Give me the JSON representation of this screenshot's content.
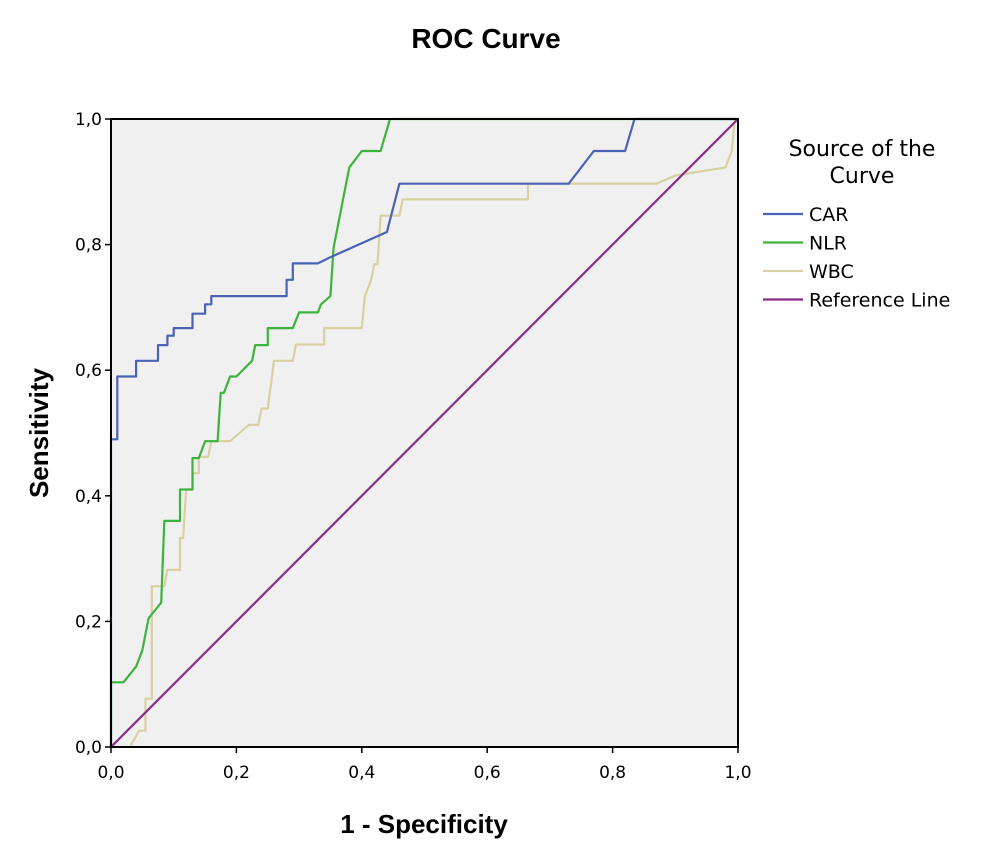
{
  "chart_data": {
    "type": "line",
    "title": "ROC Curve",
    "xlabel": "1 - Specificity",
    "ylabel": "Sensitivity",
    "xlim": [
      0,
      1
    ],
    "ylim": [
      0,
      1
    ],
    "x_ticks": [
      "0,0",
      "0,2",
      "0,4",
      "0,6",
      "0,8",
      "1,0"
    ],
    "y_ticks": [
      "0,0",
      "0,2",
      "0,4",
      "0,6",
      "0,8",
      "1,0"
    ],
    "grid": false,
    "background_color": "#f0f0f0",
    "legend": {
      "title_lines": [
        "Source of the",
        "Curve"
      ],
      "placement": "right"
    },
    "series": [
      {
        "name": "CAR",
        "color": "#4a62b4",
        "points": [
          [
            0,
            0
          ],
          [
            0,
            0.49
          ],
          [
            0.01,
            0.49
          ],
          [
            0.01,
            0.59
          ],
          [
            0.04,
            0.59
          ],
          [
            0.04,
            0.615
          ],
          [
            0.075,
            0.615
          ],
          [
            0.075,
            0.64
          ],
          [
            0.09,
            0.64
          ],
          [
            0.09,
            0.655
          ],
          [
            0.1,
            0.655
          ],
          [
            0.1,
            0.667
          ],
          [
            0.13,
            0.667
          ],
          [
            0.13,
            0.69
          ],
          [
            0.15,
            0.69
          ],
          [
            0.15,
            0.705
          ],
          [
            0.16,
            0.705
          ],
          [
            0.16,
            0.718
          ],
          [
            0.28,
            0.718
          ],
          [
            0.28,
            0.744
          ],
          [
            0.29,
            0.744
          ],
          [
            0.29,
            0.77
          ],
          [
            0.33,
            0.77
          ],
          [
            0.35,
            0.78
          ],
          [
            0.44,
            0.82
          ],
          [
            0.46,
            0.897
          ],
          [
            0.73,
            0.897
          ],
          [
            0.77,
            0.949
          ],
          [
            0.82,
            0.949
          ],
          [
            0.835,
            1.0
          ],
          [
            1.0,
            1.0
          ]
        ]
      },
      {
        "name": "NLR",
        "color": "#3cb43c",
        "points": [
          [
            0,
            0
          ],
          [
            0,
            0.103
          ],
          [
            0.02,
            0.103
          ],
          [
            0.04,
            0.128
          ],
          [
            0.05,
            0.154
          ],
          [
            0.055,
            0.18
          ],
          [
            0.06,
            0.205
          ],
          [
            0.08,
            0.23
          ],
          [
            0.085,
            0.36
          ],
          [
            0.11,
            0.36
          ],
          [
            0.11,
            0.41
          ],
          [
            0.13,
            0.41
          ],
          [
            0.13,
            0.46
          ],
          [
            0.14,
            0.46
          ],
          [
            0.15,
            0.487
          ],
          [
            0.17,
            0.487
          ],
          [
            0.175,
            0.564
          ],
          [
            0.18,
            0.564
          ],
          [
            0.19,
            0.59
          ],
          [
            0.2,
            0.59
          ],
          [
            0.225,
            0.615
          ],
          [
            0.23,
            0.64
          ],
          [
            0.25,
            0.64
          ],
          [
            0.25,
            0.667
          ],
          [
            0.29,
            0.667
          ],
          [
            0.3,
            0.692
          ],
          [
            0.33,
            0.692
          ],
          [
            0.335,
            0.705
          ],
          [
            0.35,
            0.718
          ],
          [
            0.355,
            0.795
          ],
          [
            0.375,
            0.897
          ],
          [
            0.38,
            0.923
          ],
          [
            0.4,
            0.949
          ],
          [
            0.43,
            0.949
          ],
          [
            0.445,
            1.0
          ],
          [
            1.0,
            1.0
          ]
        ]
      },
      {
        "name": "WBC",
        "color": "#d8d0a0",
        "points": [
          [
            0.03,
            0
          ],
          [
            0.045,
            0.026
          ],
          [
            0.055,
            0.026
          ],
          [
            0.055,
            0.077
          ],
          [
            0.065,
            0.077
          ],
          [
            0.065,
            0.256
          ],
          [
            0.085,
            0.256
          ],
          [
            0.09,
            0.282
          ],
          [
            0.11,
            0.282
          ],
          [
            0.11,
            0.333
          ],
          [
            0.115,
            0.333
          ],
          [
            0.12,
            0.41
          ],
          [
            0.13,
            0.41
          ],
          [
            0.13,
            0.436
          ],
          [
            0.14,
            0.436
          ],
          [
            0.14,
            0.462
          ],
          [
            0.155,
            0.462
          ],
          [
            0.16,
            0.487
          ],
          [
            0.19,
            0.487
          ],
          [
            0.22,
            0.513
          ],
          [
            0.235,
            0.513
          ],
          [
            0.24,
            0.539
          ],
          [
            0.25,
            0.539
          ],
          [
            0.26,
            0.615
          ],
          [
            0.29,
            0.615
          ],
          [
            0.295,
            0.641
          ],
          [
            0.34,
            0.641
          ],
          [
            0.34,
            0.667
          ],
          [
            0.4,
            0.667
          ],
          [
            0.405,
            0.718
          ],
          [
            0.415,
            0.744
          ],
          [
            0.42,
            0.769
          ],
          [
            0.425,
            0.769
          ],
          [
            0.43,
            0.846
          ],
          [
            0.46,
            0.846
          ],
          [
            0.465,
            0.872
          ],
          [
            0.665,
            0.872
          ],
          [
            0.665,
            0.897
          ],
          [
            0.87,
            0.897
          ],
          [
            0.9,
            0.91
          ],
          [
            0.98,
            0.923
          ],
          [
            0.99,
            0.949
          ],
          [
            0.995,
            1.0
          ]
        ]
      },
      {
        "name": "Reference Line",
        "color": "#8a2b8a",
        "points": [
          [
            0,
            0
          ],
          [
            1,
            1
          ]
        ]
      }
    ]
  }
}
